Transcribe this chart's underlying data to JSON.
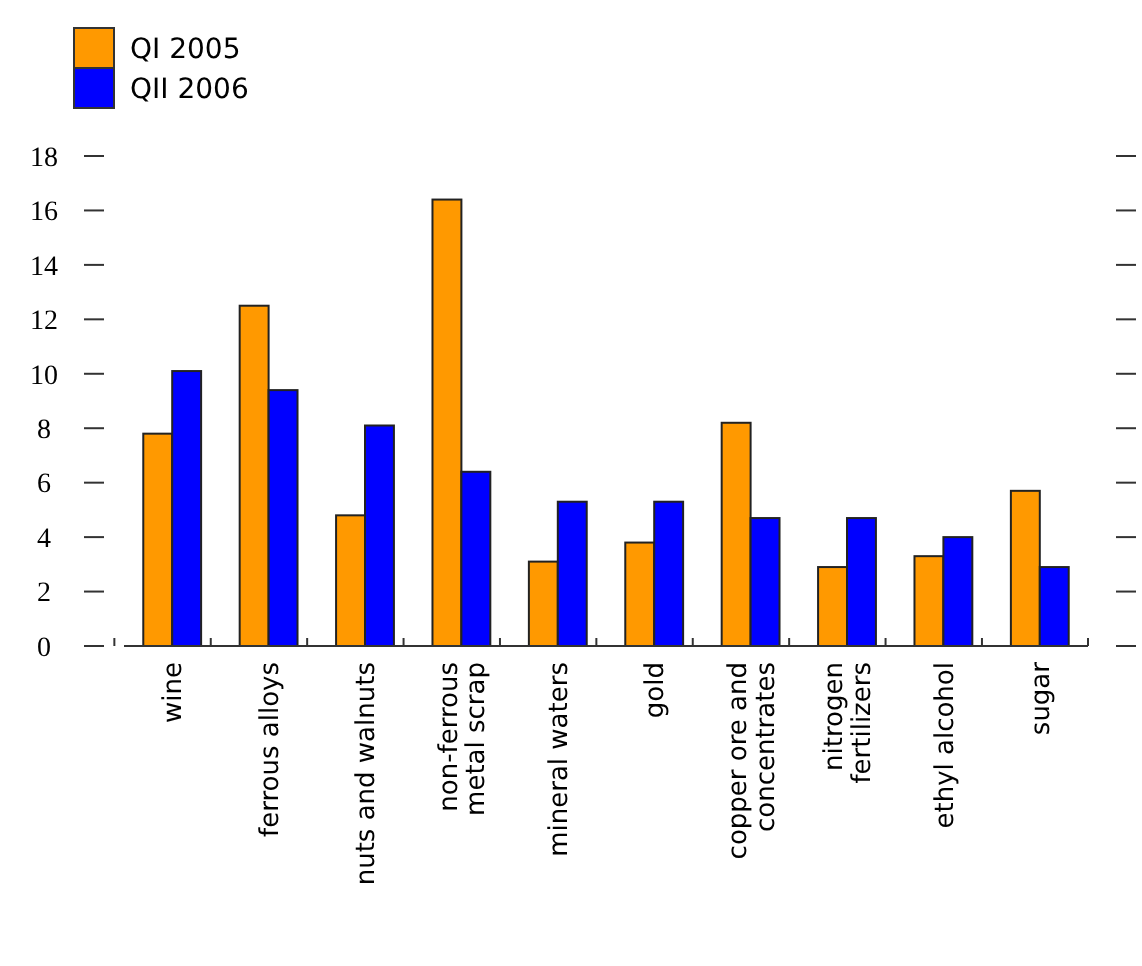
{
  "chart_data": {
    "type": "bar",
    "categories": [
      "wine",
      "ferrous alloys",
      "nuts and walnuts",
      "non-ferrous\nmetal scrap",
      "mineral waters",
      "gold",
      "copper ore and\nconcentrates",
      "nitrogen\nfertilizers",
      "ethyl alcohol",
      "sugar"
    ],
    "series": [
      {
        "name": "QI 2005",
        "color": "#ff9900",
        "values": [
          7.8,
          12.5,
          4.8,
          16.4,
          3.1,
          3.8,
          8.2,
          2.9,
          3.3,
          5.7
        ]
      },
      {
        "name": "QII 2006",
        "color": "#0000ff",
        "values": [
          10.1,
          9.4,
          8.1,
          6.4,
          5.3,
          5.3,
          4.7,
          4.7,
          4.0,
          2.9
        ]
      }
    ],
    "ylim": [
      0,
      18
    ],
    "yticks": [
      0,
      2,
      4,
      6,
      8,
      10,
      12,
      14,
      16,
      18
    ],
    "grid": false,
    "legend": "top left"
  }
}
